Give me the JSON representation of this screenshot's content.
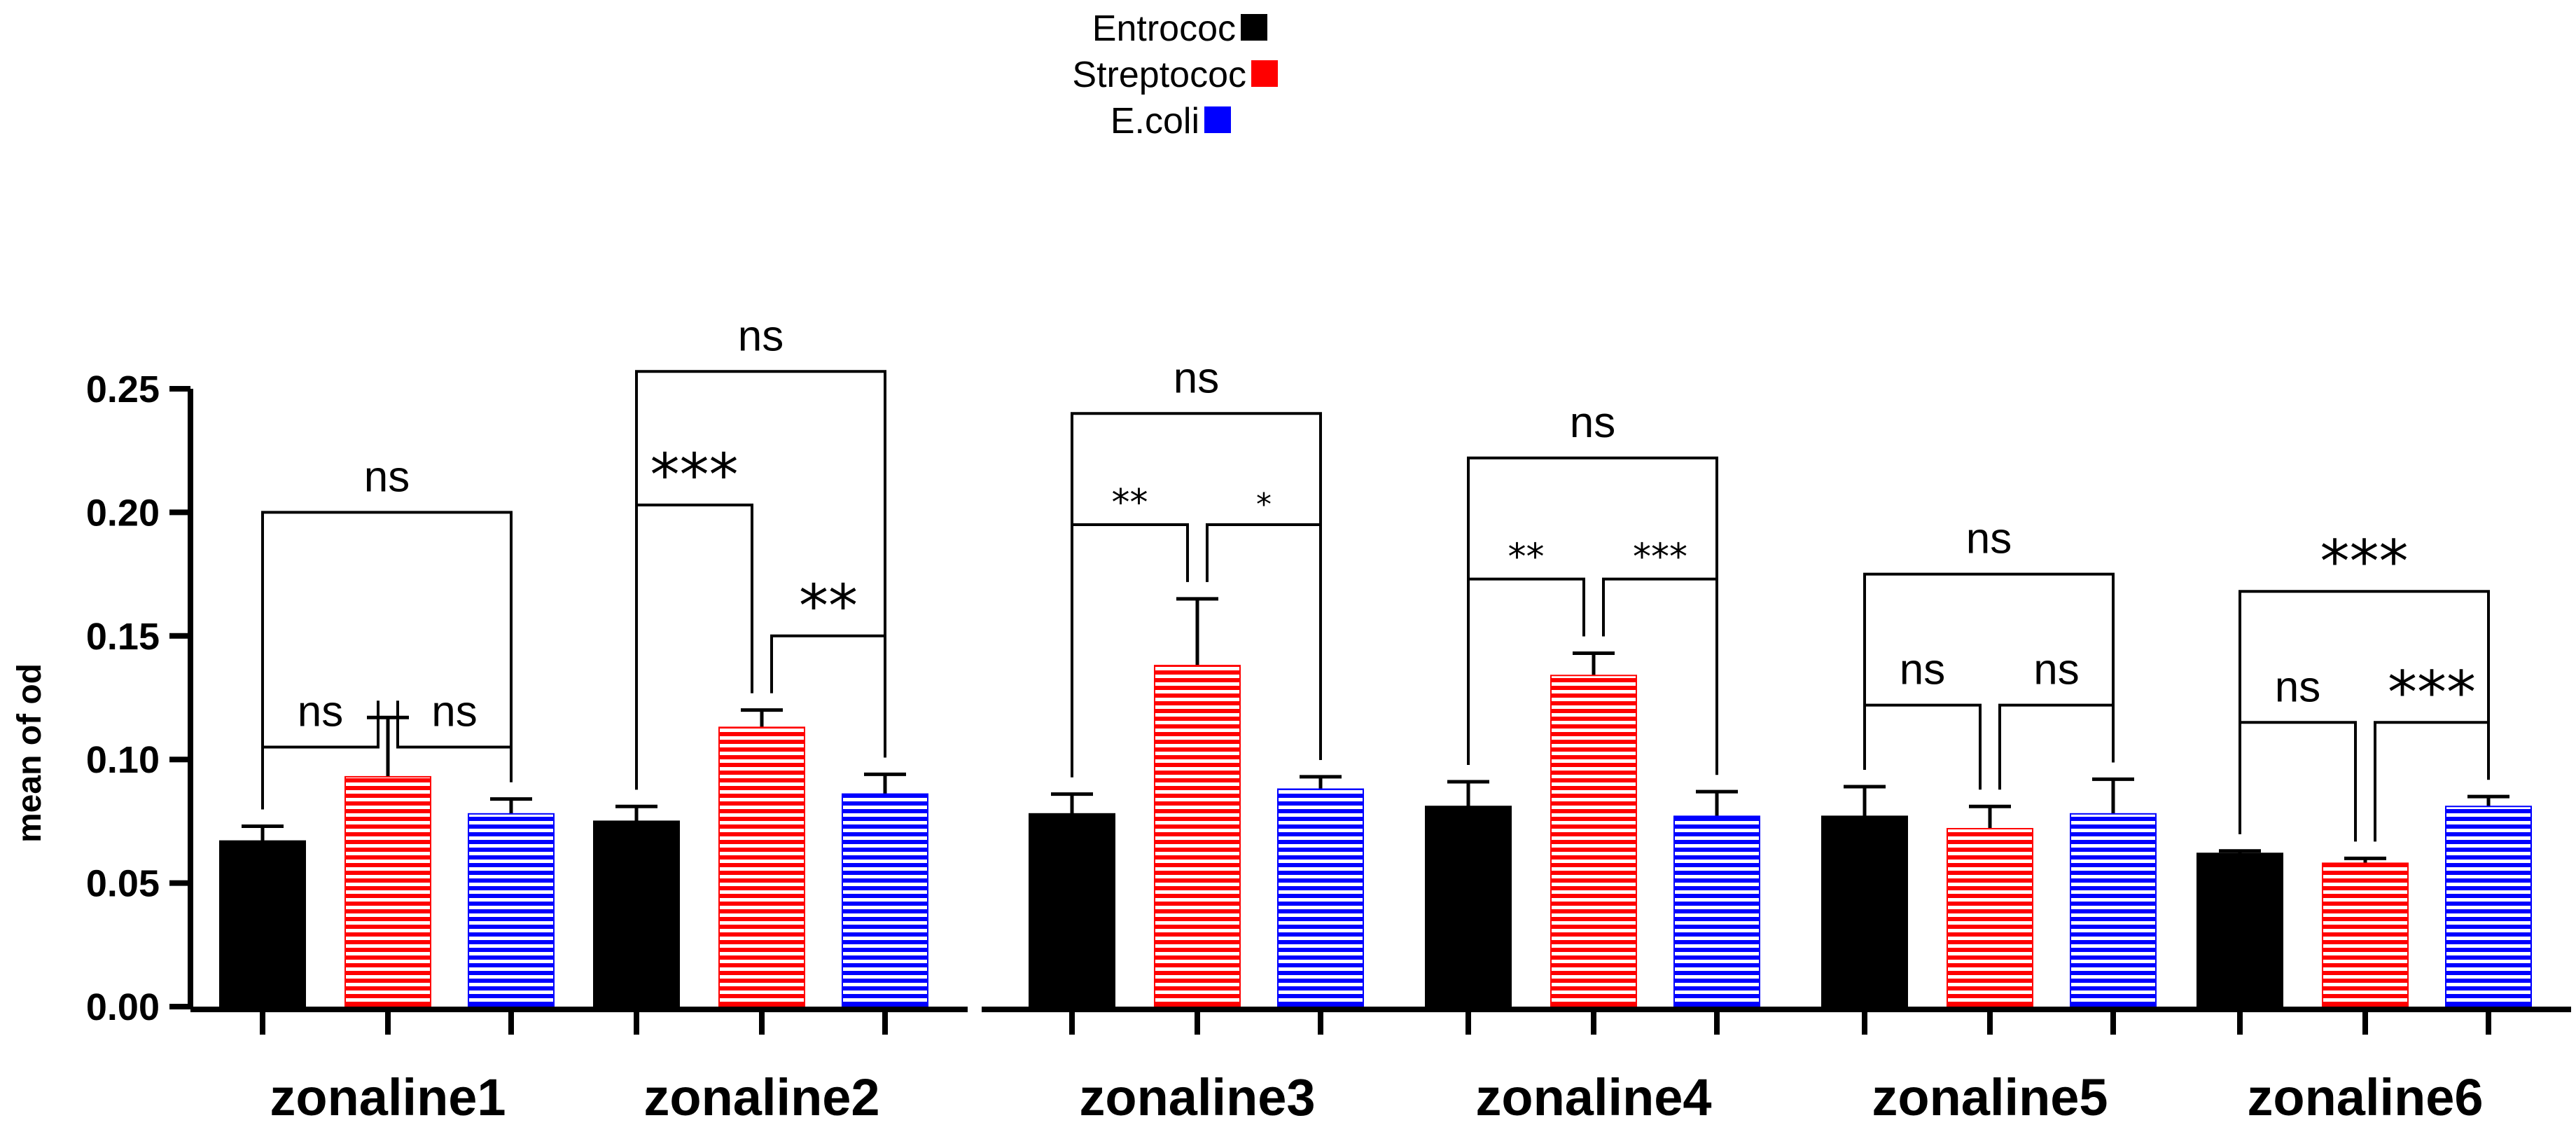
{
  "chart_data": {
    "type": "bar",
    "title": "",
    "xlabel": "",
    "ylabel": "mean of od",
    "ylim": [
      0,
      0.25
    ],
    "yticks": [
      "0.00",
      "0.05",
      "0.10",
      "0.15",
      "0.20",
      "0.25"
    ],
    "categories": [
      "zonaline1",
      "zonaline2",
      "zonaline3",
      "zonaline4",
      "zonaline5",
      "zonaline6"
    ],
    "series": [
      {
        "name": "Entrococ",
        "color": "#000000",
        "fill": "solid",
        "values": [
          0.067,
          0.075,
          0.078,
          0.081,
          0.077,
          0.062
        ],
        "errors": [
          0.006,
          0.006,
          0.008,
          0.01,
          0.012,
          0.001
        ]
      },
      {
        "name": "Streptococ",
        "color": "#ff0000",
        "fill": "horizontal-stripes",
        "values": [
          0.093,
          0.113,
          0.138,
          0.134,
          0.072,
          0.058
        ],
        "errors": [
          0.024,
          0.007,
          0.027,
          0.009,
          0.009,
          0.002
        ]
      },
      {
        "name": "E.coli",
        "color": "#0000ff",
        "fill": "horizontal-stripes",
        "values": [
          0.078,
          0.086,
          0.088,
          0.077,
          0.078,
          0.081
        ],
        "errors": [
          0.006,
          0.008,
          0.005,
          0.01,
          0.014,
          0.004
        ]
      }
    ],
    "legend": {
      "position": "top-center"
    },
    "grid": false,
    "significance": [
      {
        "group": 0,
        "pairs": [
          {
            "from": 0,
            "to": 1,
            "label": "ns",
            "level": 0.105
          },
          {
            "from": 1,
            "to": 2,
            "label": "ns",
            "level": 0.105
          },
          {
            "from": 0,
            "to": 2,
            "label": "ns",
            "level": 0.2
          }
        ]
      },
      {
        "group": 1,
        "pairs": [
          {
            "from": 0,
            "to": 1,
            "label": "***",
            "level": 0.203
          },
          {
            "from": 1,
            "to": 2,
            "label": "**",
            "level": 0.15
          },
          {
            "from": 0,
            "to": 2,
            "label": "ns",
            "level": 0.257
          }
        ]
      },
      {
        "group": 2,
        "pairs": [
          {
            "from": 0,
            "to": 1,
            "label": "**",
            "level": 0.195
          },
          {
            "from": 1,
            "to": 2,
            "label": "*",
            "level": 0.195
          },
          {
            "from": 0,
            "to": 2,
            "label": "ns",
            "level": 0.24
          }
        ]
      },
      {
        "group": 3,
        "pairs": [
          {
            "from": 0,
            "to": 1,
            "label": "**",
            "level": 0.173
          },
          {
            "from": 1,
            "to": 2,
            "label": "***",
            "level": 0.173
          },
          {
            "from": 0,
            "to": 2,
            "label": "ns",
            "level": 0.222
          }
        ]
      },
      {
        "group": 4,
        "pairs": [
          {
            "from": 0,
            "to": 1,
            "label": "ns",
            "level": 0.122
          },
          {
            "from": 1,
            "to": 2,
            "label": "ns",
            "level": 0.122
          },
          {
            "from": 0,
            "to": 2,
            "label": "ns",
            "level": 0.175
          }
        ]
      },
      {
        "group": 5,
        "pairs": [
          {
            "from": 0,
            "to": 1,
            "label": "ns",
            "level": 0.115
          },
          {
            "from": 1,
            "to": 2,
            "label": "***",
            "level": 0.115
          },
          {
            "from": 0,
            "to": 2,
            "label": "***",
            "level": 0.168
          }
        ]
      }
    ]
  }
}
